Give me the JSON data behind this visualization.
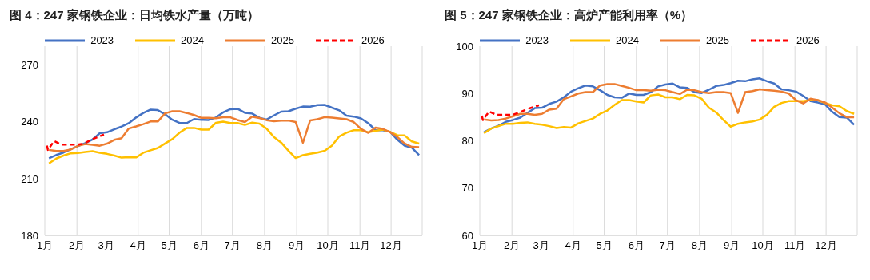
{
  "chart_data": [
    {
      "type": "line",
      "title": "图 4：247 家钢铁企业：日均铁水产量（万吨）",
      "legend": "top",
      "grid": "x",
      "marker": "none",
      "x": [
        "--01-05",
        "--01-12",
        "--01-19",
        "--01-26",
        "--02-02",
        "--02-09",
        "--02-16",
        "--02-23",
        "--03-02",
        "--03-09",
        "--03-16",
        "--03-23",
        "--03-30",
        "--04-06",
        "--04-13",
        "--04-20",
        "--04-27",
        "--05-04",
        "--05-11",
        "--05-18",
        "--05-25",
        "--06-01",
        "--06-08",
        "--06-15",
        "--06-22",
        "--06-29",
        "--07-06",
        "--07-13",
        "--07-20",
        "--07-27",
        "--08-03",
        "--08-10",
        "--08-17",
        "--08-24",
        "--08-31",
        "--09-07",
        "--09-14",
        "--09-21",
        "--09-28",
        "--10-05",
        "--10-12",
        "--10-19",
        "--10-26",
        "--11-02",
        "--11-09",
        "--11-16",
        "--11-23",
        "--11-30",
        "--12-07",
        "--12-14",
        "--12-21",
        "--12-28"
      ],
      "xlim": [
        "--01-01",
        "--12-31"
      ],
      "xticks": [
        {
          "value": "--01-01",
          "label": "1月"
        },
        {
          "value": "--02-01",
          "label": "2月"
        },
        {
          "value": "--03-01",
          "label": "3月"
        },
        {
          "value": "--04-01",
          "label": "4月"
        },
        {
          "value": "--05-01",
          "label": "5月"
        },
        {
          "value": "--06-01",
          "label": "6月"
        },
        {
          "value": "--07-01",
          "label": "7月"
        },
        {
          "value": "--08-01",
          "label": "8月"
        },
        {
          "value": "--09-01",
          "label": "9月"
        },
        {
          "value": "--10-01",
          "label": "10月"
        },
        {
          "value": "--11-01",
          "label": "11月"
        },
        {
          "value": "--12-01",
          "label": "12月"
        }
      ],
      "ylim": [
        180,
        280
      ],
      "yticks": [
        180,
        210,
        240,
        270
      ],
      "series": [
        {
          "name": "2023",
          "color": "#4472c4",
          "values": [
            220.8,
            222.5,
            223.8,
            225.5,
            227.2,
            228.8,
            230.7,
            234,
            234.5,
            236.1,
            237.5,
            239.3,
            242.3,
            244.7,
            246.5,
            246.2,
            244,
            241.1,
            239.4,
            239.4,
            241.5,
            241.1,
            241,
            242.3,
            245,
            246.7,
            246.9,
            244.8,
            244.4,
            242.2,
            241.2,
            243.4,
            245.4,
            245.6,
            247,
            248.1,
            248,
            248.9,
            249,
            247.5,
            246.1,
            243.3,
            242.8,
            241.8,
            239.3,
            235.6,
            235.6,
            234.8,
            230.6,
            227.4,
            226.4,
            222.5
          ]
        },
        {
          "name": "2024",
          "color": "#ffc000",
          "values": [
            218.1,
            220.6,
            222.2,
            223.4,
            223.6,
            224.1,
            224.5,
            223.7,
            223.1,
            222.2,
            221.1,
            221.3,
            221.2,
            223.7,
            225,
            226.2,
            228.6,
            230.9,
            234.3,
            236.8,
            236.8,
            235.9,
            235.9,
            239.5,
            240.1,
            239.4,
            239.4,
            238.4,
            239.6,
            239.1,
            236.4,
            232,
            229.1,
            224.8,
            220.9,
            222.4,
            223.1,
            223.8,
            224.7,
            227.5,
            232.3,
            234.3,
            235.6,
            235.6,
            234.5,
            235.3,
            235.9,
            234.7,
            233,
            232.8,
            229.7,
            228.5
          ]
        },
        {
          "name": "2025",
          "color": "#ed7d31",
          "values": [
            225.2,
            224.6,
            224.6,
            225.4,
            227.3,
            228.3,
            227.9,
            227.4,
            228.5,
            230.5,
            231.4,
            236.5,
            237.6,
            238.8,
            240.2,
            240.2,
            244.5,
            245.6,
            245.6,
            244.7,
            243.6,
            242.1,
            242.1,
            241.9,
            242.4,
            242.4,
            241,
            239.9,
            242.8,
            242,
            240.9,
            240.3,
            240.7,
            240.7,
            239.9,
            229,
            240.8,
            241.4,
            242.5,
            242.2,
            241.8,
            241.4,
            239.9,
            236.3,
            234.2,
            237,
            236.3,
            234.6,
            232,
            228.6,
            226.8,
            226.6
          ]
        },
        {
          "name": "2026",
          "color": "#ff0000",
          "line_style": "dashed",
          "x": [
            "--01-03",
            "--01-04",
            "--01-10",
            "--01-17",
            "--01-25",
            "--02-02",
            "--02-08",
            "--02-17",
            "--02-27"
          ],
          "values": [
            227.5,
            225.2,
            229.9,
            228,
            228,
            228,
            228.6,
            231.1,
            233.3
          ]
        }
      ]
    },
    {
      "type": "line",
      "title": "图 5：247 家钢铁企业：高炉产能利用率（%）",
      "legend": "top",
      "grid": "x",
      "marker": "none",
      "x": [
        "--01-05",
        "--01-12",
        "--01-19",
        "--01-26",
        "--02-02",
        "--02-09",
        "--02-16",
        "--02-23",
        "--03-02",
        "--03-09",
        "--03-16",
        "--03-23",
        "--03-30",
        "--04-06",
        "--04-13",
        "--04-20",
        "--04-27",
        "--05-04",
        "--05-11",
        "--05-18",
        "--05-25",
        "--06-01",
        "--06-08",
        "--06-15",
        "--06-22",
        "--06-29",
        "--07-06",
        "--07-13",
        "--07-20",
        "--07-27",
        "--08-03",
        "--08-10",
        "--08-17",
        "--08-24",
        "--08-31",
        "--09-07",
        "--09-14",
        "--09-21",
        "--09-28",
        "--10-05",
        "--10-12",
        "--10-19",
        "--10-26",
        "--11-02",
        "--11-09",
        "--11-16",
        "--11-23",
        "--11-30",
        "--12-07",
        "--12-14",
        "--12-21",
        "--12-28"
      ],
      "xlim": [
        "--01-01",
        "--12-31"
      ],
      "xticks": [
        {
          "value": "--01-01",
          "label": "1月"
        },
        {
          "value": "--02-01",
          "label": "2月"
        },
        {
          "value": "--03-01",
          "label": "3月"
        },
        {
          "value": "--04-01",
          "label": "4月"
        },
        {
          "value": "--05-01",
          "label": "5月"
        },
        {
          "value": "--06-01",
          "label": "6月"
        },
        {
          "value": "--07-01",
          "label": "7月"
        },
        {
          "value": "--08-01",
          "label": "8月"
        },
        {
          "value": "--09-01",
          "label": "9月"
        },
        {
          "value": "--10-01",
          "label": "10月"
        },
        {
          "value": "--11-01",
          "label": "11月"
        },
        {
          "value": "--12-01",
          "label": "12月"
        }
      ],
      "ylim": [
        60,
        100
      ],
      "yticks": [
        60,
        70,
        80,
        90,
        100
      ],
      "series": [
        {
          "name": "2023",
          "color": "#4472c4",
          "values": [
            81.8,
            82.6,
            83.2,
            84,
            84.4,
            84.9,
            85.9,
            86.9,
            87,
            87.8,
            88.3,
            89.2,
            90.4,
            91.1,
            91.7,
            91.5,
            90.7,
            89.7,
            89.2,
            89.1,
            90,
            89.7,
            89.7,
            90.3,
            91.5,
            91.9,
            92.1,
            91.3,
            91.2,
            90.3,
            90.1,
            90.8,
            91.6,
            91.8,
            92.2,
            92.7,
            92.6,
            93,
            93.2,
            92.6,
            92.1,
            90.9,
            90.7,
            90.4,
            89.5,
            88.4,
            88.1,
            87.7,
            86.1,
            85,
            84.9,
            83.4
          ]
        },
        {
          "name": "2024",
          "color": "#ffc000",
          "values": [
            81.6,
            82.6,
            83.1,
            83.6,
            83.6,
            83.8,
            83.9,
            83.6,
            83.4,
            83.1,
            82.7,
            82.9,
            82.8,
            83.7,
            84.2,
            84.7,
            85.7,
            86.4,
            87.6,
            88.6,
            88.6,
            88.3,
            88.1,
            89.6,
            89.8,
            89.2,
            89.2,
            88.8,
            89.7,
            89.6,
            88.9,
            87,
            86,
            84.4,
            83,
            83.6,
            83.9,
            84.1,
            84.5,
            85.5,
            87.2,
            88,
            88.4,
            88.4,
            88.4,
            88.6,
            88.6,
            88,
            87.5,
            87.3,
            86.3,
            85.7
          ]
        },
        {
          "name": "2025",
          "color": "#ed7d31",
          "values": [
            84.5,
            84.3,
            84.4,
            84.7,
            85.2,
            85.7,
            85.7,
            85.5,
            85.7,
            86.6,
            86.8,
            88.8,
            89.4,
            90,
            90.3,
            90.3,
            91.7,
            92,
            92,
            91.6,
            91.2,
            90.7,
            90.7,
            90.6,
            90.8,
            90.7,
            90.3,
            89.9,
            90.8,
            90.7,
            90.3,
            90.1,
            90.3,
            90.3,
            90.1,
            85.9,
            90.3,
            90.5,
            90.9,
            90.7,
            90.6,
            90.4,
            90,
            88.6,
            87.9,
            88.9,
            88.6,
            88.1,
            87,
            85.8,
            85,
            85
          ]
        },
        {
          "name": "2026",
          "color": "#ff0000",
          "line_style": "dashed",
          "x": [
            "--01-03",
            "--01-04",
            "--01-10",
            "--01-17",
            "--01-25",
            "--02-02",
            "--02-08",
            "--02-17",
            "--02-27"
          ],
          "values": [
            85.3,
            84.4,
            86.2,
            85.5,
            85.5,
            85.5,
            86,
            86.8,
            87.5
          ]
        }
      ]
    }
  ]
}
